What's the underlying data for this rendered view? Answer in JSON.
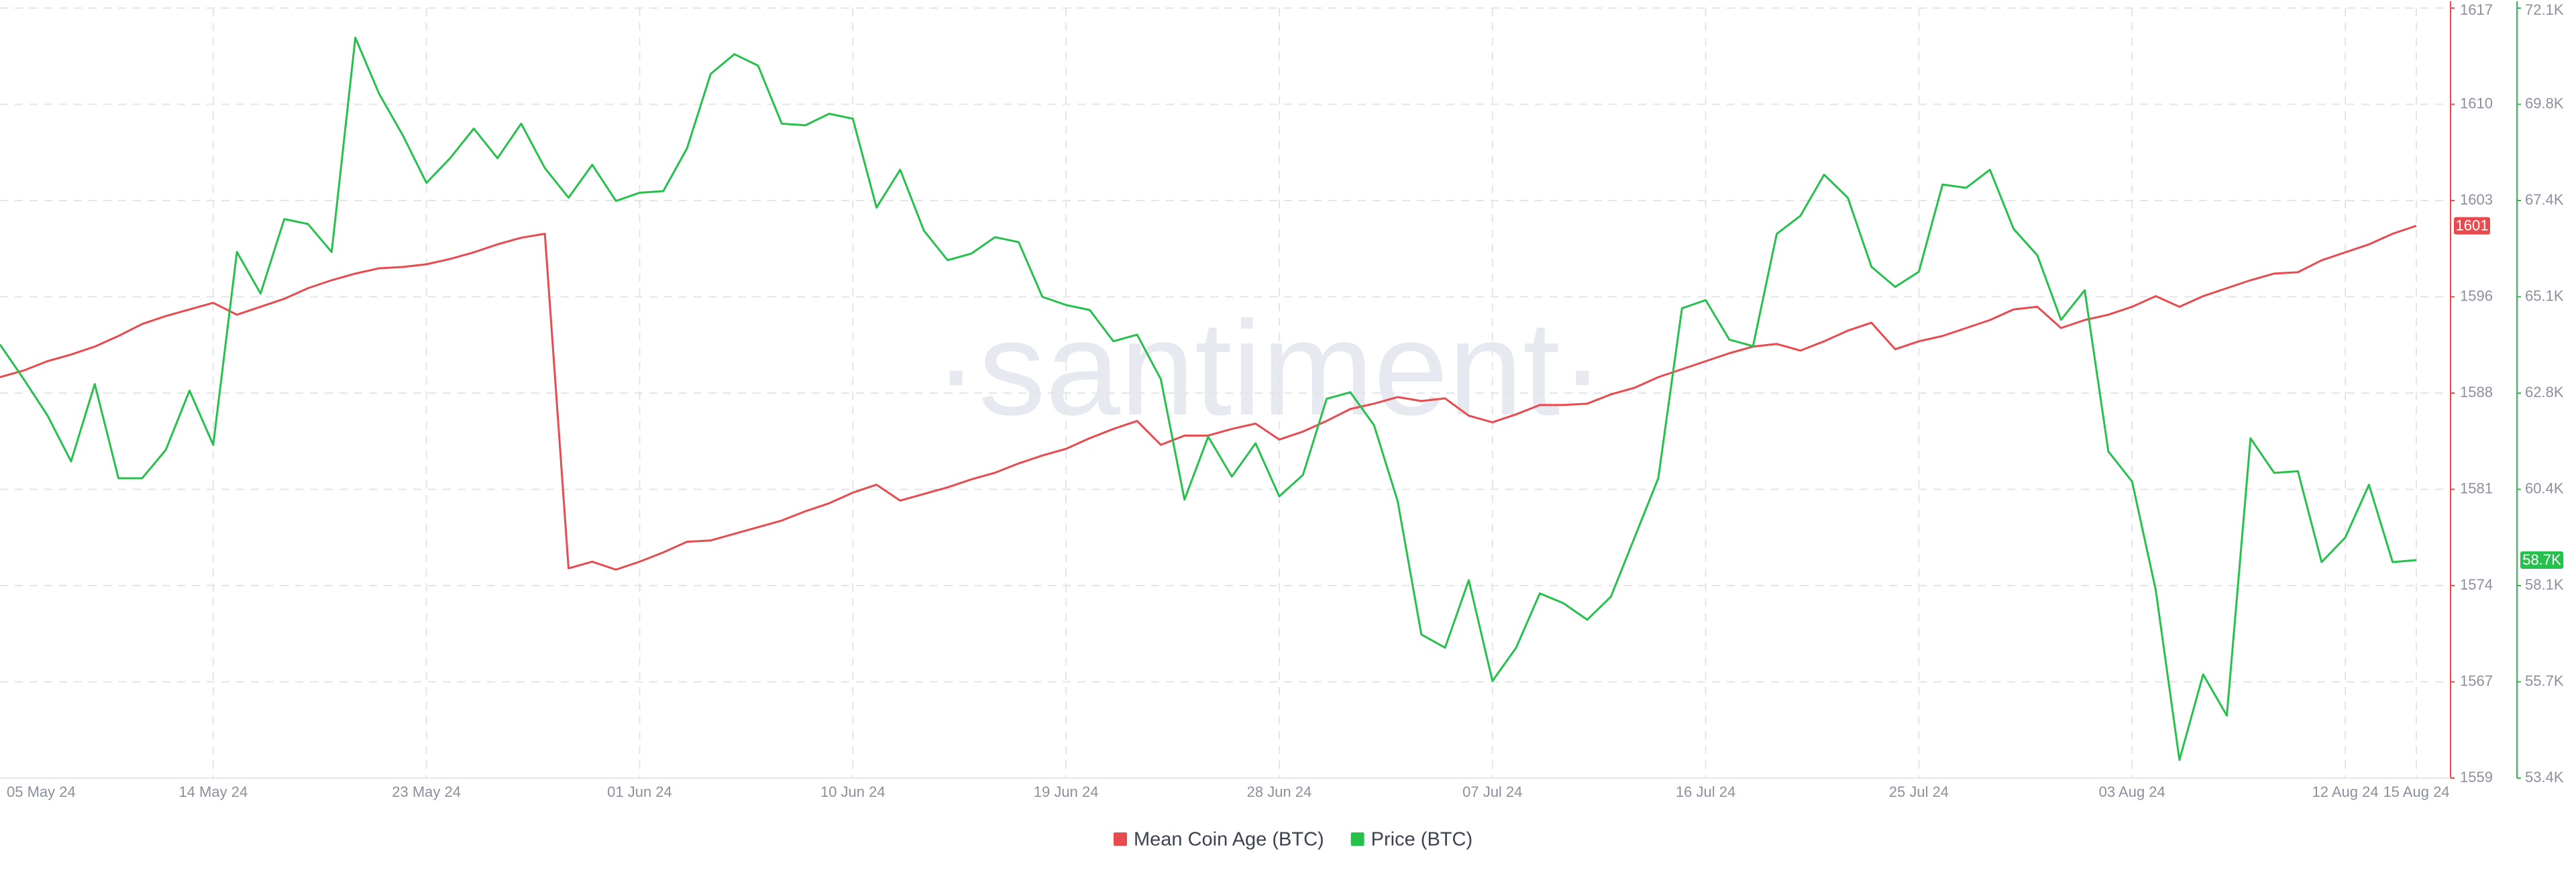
{
  "chart_data": {
    "type": "line",
    "watermark": "·santiment·",
    "grid": true,
    "categories": [
      "05 May 24",
      null,
      null,
      null,
      null,
      null,
      null,
      null,
      null,
      "14 May 24",
      null,
      null,
      null,
      null,
      null,
      null,
      null,
      null,
      "23 May 24",
      null,
      null,
      null,
      null,
      null,
      null,
      null,
      null,
      "01 Jun 24",
      null,
      null,
      null,
      null,
      null,
      null,
      null,
      null,
      "10 Jun 24",
      null,
      null,
      null,
      null,
      null,
      null,
      null,
      null,
      "19 Jun 24",
      null,
      null,
      null,
      null,
      null,
      null,
      null,
      null,
      "28 Jun 24",
      null,
      null,
      null,
      null,
      null,
      null,
      null,
      null,
      "07 Jul 24",
      null,
      null,
      null,
      null,
      null,
      null,
      null,
      null,
      "16 Jul 24",
      null,
      null,
      null,
      null,
      null,
      null,
      null,
      null,
      "25 Jul 24",
      null,
      null,
      null,
      null,
      null,
      null,
      null,
      null,
      "03 Aug 24",
      null,
      null,
      null,
      null,
      null,
      null,
      null,
      null,
      "12 Aug 24",
      null,
      null,
      "15 Aug 24"
    ],
    "ylim": [
      1559.4,
      1617.4
    ],
    "yticks": [
      {
        "value": 1559.4,
        "label": "1559"
      },
      {
        "value": 1566.65,
        "label": "1567"
      },
      {
        "value": 1573.9,
        "label": "1574"
      },
      {
        "value": 1581.15,
        "label": "1581"
      },
      {
        "value": 1588.4,
        "label": "1588"
      },
      {
        "value": 1595.65,
        "label": "1596"
      },
      {
        "value": 1602.9,
        "label": "1603"
      },
      {
        "value": 1610.15,
        "label": "1610"
      },
      {
        "value": 1617.4,
        "label": "1617"
      }
    ],
    "y2lim": [
      53400,
      72120
    ],
    "y2ticks": [
      {
        "value": 53400,
        "label": "53.4K"
      },
      {
        "value": 55740,
        "label": "55.7K"
      },
      {
        "value": 58080,
        "label": "58.1K"
      },
      {
        "value": 60420,
        "label": "60.4K"
      },
      {
        "value": 62760,
        "label": "62.8K"
      },
      {
        "value": 65100,
        "label": "65.1K"
      },
      {
        "value": 67440,
        "label": "67.4K"
      },
      {
        "value": 69780,
        "label": "69.8K"
      },
      {
        "value": 72120,
        "label": "72.1K"
      }
    ],
    "series": [
      {
        "name": "Mean Coin Age (BTC)",
        "color": "#e84b4f",
        "axis": "y",
        "values": [
          1589.6,
          1590.1,
          1590.8,
          1591.3,
          1591.9,
          1592.7,
          1593.6,
          1594.2,
          1594.7,
          1595.2,
          1594.3,
          1594.9,
          1595.5,
          1596.3,
          1596.9,
          1597.4,
          1597.8,
          1597.9,
          1598.1,
          1598.5,
          1599.0,
          1599.6,
          1600.1,
          1600.4,
          1575.2,
          1575.7,
          1575.1,
          1575.7,
          1576.4,
          1577.2,
          1577.3,
          1577.8,
          1578.3,
          1578.8,
          1579.5,
          1580.1,
          1580.9,
          1581.5,
          1580.3,
          1580.8,
          1581.3,
          1581.9,
          1582.4,
          1583.1,
          1583.7,
          1584.2,
          1585.0,
          1585.7,
          1586.3,
          1584.5,
          1585.2,
          1585.2,
          1585.7,
          1586.1,
          1584.9,
          1585.5,
          1586.3,
          1587.2,
          1587.6,
          1588.1,
          1587.8,
          1588.0,
          1586.7,
          1586.2,
          1586.8,
          1587.5,
          1587.5,
          1587.6,
          1588.3,
          1588.8,
          1589.6,
          1590.2,
          1590.8,
          1591.4,
          1591.9,
          1592.1,
          1591.6,
          1592.3,
          1593.1,
          1593.7,
          1591.7,
          1592.3,
          1592.7,
          1593.3,
          1593.9,
          1594.7,
          1594.9,
          1593.3,
          1593.9,
          1594.3,
          1594.9,
          1595.7,
          1594.9,
          1595.7,
          1596.3,
          1596.9,
          1597.4,
          1597.5,
          1598.4,
          1599.0,
          1599.6,
          1600.4,
          1601
        ]
      },
      {
        "name": "Price (BTC)",
        "color": "#26c04c",
        "axis": "y2",
        "values": [
          63940,
          63100,
          62220,
          61100,
          62980,
          60690,
          60690,
          61380,
          62820,
          61500,
          66190,
          65180,
          66990,
          66870,
          66190,
          71400,
          70040,
          69030,
          67870,
          68470,
          69190,
          68470,
          69310,
          68230,
          67510,
          68310,
          67430,
          67630,
          67670,
          68710,
          70520,
          71000,
          70720,
          69310,
          69270,
          69550,
          69430,
          67270,
          68190,
          66710,
          65990,
          66150,
          66550,
          66430,
          65100,
          64900,
          64780,
          64020,
          64180,
          63100,
          60170,
          61700,
          60730,
          61540,
          60250,
          60770,
          62620,
          62780,
          61980,
          60130,
          56890,
          56570,
          58210,
          55760,
          56570,
          57890,
          57650,
          57250,
          57810,
          59250,
          60690,
          64820,
          65020,
          64060,
          63900,
          66630,
          67070,
          68070,
          67510,
          65830,
          65340,
          65710,
          67830,
          67750,
          68190,
          66750,
          66110,
          64540,
          65260,
          61340,
          60610,
          57970,
          53840,
          55920,
          54920,
          61660,
          60820,
          60860,
          58650,
          59250,
          60530,
          58650,
          58700
        ],
        "value_labels": [
          null,
          null,
          null,
          null,
          null,
          null,
          null,
          null,
          null,
          null,
          null,
          null,
          null,
          null,
          null,
          null,
          null,
          null,
          null,
          null,
          null,
          null,
          null,
          null,
          null,
          null,
          null,
          null,
          null,
          null,
          null,
          null,
          null,
          null,
          null,
          null,
          null,
          null,
          null,
          null,
          null,
          null,
          null,
          null,
          null,
          null,
          null,
          null,
          null,
          null,
          null,
          null,
          null,
          null,
          null,
          null,
          null,
          null,
          null,
          null,
          null,
          null,
          null,
          null,
          null,
          null,
          null,
          null,
          null,
          null,
          null,
          null,
          null,
          null,
          null,
          null,
          null,
          null,
          null,
          null,
          null,
          null,
          null,
          null,
          null,
          null,
          null,
          null,
          null,
          null,
          null,
          null,
          null,
          null,
          null,
          null,
          null,
          null,
          null,
          null,
          null,
          null,
          "58.7K"
        ]
      }
    ]
  }
}
